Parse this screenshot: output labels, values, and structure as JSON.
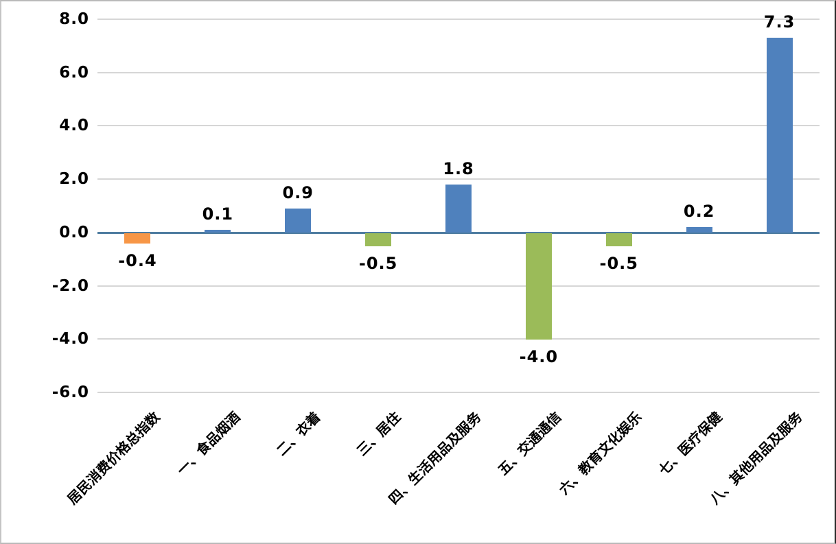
{
  "chart_data": {
    "type": "bar",
    "title": "",
    "xlabel": "",
    "ylabel": "",
    "categories": [
      "居民消费价格总指数",
      "一、食品烟酒",
      "二、衣着",
      "三、居住",
      "四、生活用品及服务",
      "五、交通通信",
      "六、教育文化娱乐",
      "七、医疗保健",
      "八、其他用品及服务"
    ],
    "values": [
      -0.4,
      0.1,
      0.9,
      -0.5,
      1.8,
      -4.0,
      -0.5,
      0.2,
      7.3
    ],
    "data_labels": [
      "-0.4",
      "0.1",
      "0.9",
      "-0.5",
      "1.8",
      "-4.0",
      "-0.5",
      "0.2",
      "7.3"
    ],
    "bar_colors": [
      "#F79646",
      "#4F81BD",
      "#4F81BD",
      "#9BBB59",
      "#4F81BD",
      "#9BBB59",
      "#9BBB59",
      "#4F81BD",
      "#4F81BD"
    ],
    "ylim": [
      -6,
      8
    ],
    "ytick_interval": 2,
    "yticks": [
      "8.0",
      "6.0",
      "4.0",
      "2.0",
      "0.0",
      "-2.0",
      "-4.0",
      "-6.0"
    ],
    "grid": true,
    "legend": false,
    "colors": {
      "series_blue": "#4F81BD",
      "series_green": "#9BBB59",
      "series_orange": "#F79646",
      "axis_line": "#4E7CA0",
      "gridline": "#D6D6D6",
      "label_text": "#000000",
      "background": "#FFFFFF"
    }
  }
}
